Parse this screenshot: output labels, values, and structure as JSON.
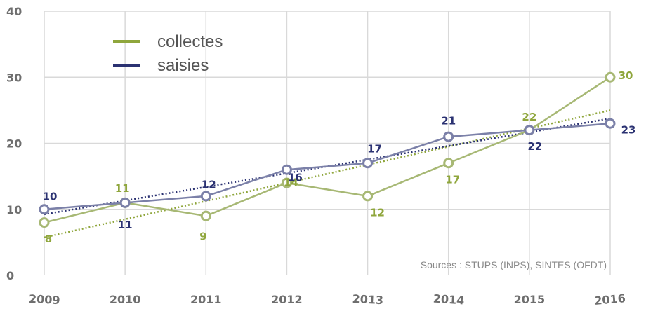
{
  "chart_data": {
    "type": "line",
    "x": [
      2009,
      2010,
      2011,
      2012,
      2013,
      2014,
      2015,
      2016
    ],
    "ylim": [
      0,
      40
    ],
    "yticks": [
      0,
      10,
      20,
      30,
      40
    ],
    "grid": true,
    "legend_position": "top-left",
    "series": [
      {
        "name": "collectes",
        "color": "#8fa63c",
        "values": [
          8,
          11,
          9,
          14,
          12,
          17,
          22,
          30
        ],
        "labels": [
          "8",
          "11",
          "9",
          "14",
          "12",
          "17",
          "22",
          "30"
        ],
        "trendline": true
      },
      {
        "name": "saisies",
        "color": "#2b3272",
        "values": [
          10,
          11,
          12,
          16,
          17,
          21,
          22,
          23
        ],
        "labels": [
          "10",
          "11",
          "12",
          "16",
          "17",
          "21",
          "22",
          "23"
        ],
        "trendline": true
      }
    ],
    "source": "Sources : STUPS (INPS), SINTES (OFDT)"
  }
}
